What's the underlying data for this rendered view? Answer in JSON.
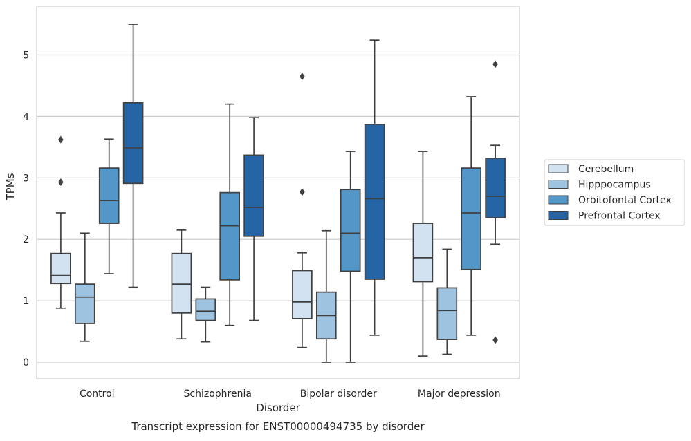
{
  "chart_data": {
    "type": "box",
    "title": "",
    "caption": "Transcript expression for ENST00000494735 by disorder",
    "xlabel": "Disorder",
    "ylabel": "TPMs",
    "categories": [
      "Control",
      "Schizophrenia",
      "Bipolar disorder",
      "Major depression"
    ],
    "ylim": [
      -0.27,
      5.8
    ],
    "yticks": [
      0,
      1,
      2,
      3,
      4,
      5
    ],
    "grid": "horizontal",
    "legend_position": "right",
    "series": [
      {
        "name": "Cerebellum",
        "color": "#d3e2f1",
        "boxes": [
          {
            "whisker_low": 0.88,
            "q1": 1.28,
            "median": 1.41,
            "q3": 1.77,
            "whisker_high": 2.43,
            "outliers": [
              2.93,
              3.62
            ]
          },
          {
            "whisker_low": 0.38,
            "q1": 0.8,
            "median": 1.27,
            "q3": 1.77,
            "whisker_high": 2.15,
            "outliers": []
          },
          {
            "whisker_low": 0.24,
            "q1": 0.71,
            "median": 0.98,
            "q3": 1.49,
            "whisker_high": 1.78,
            "outliers": [
              2.77,
              4.65
            ]
          },
          {
            "whisker_low": 0.1,
            "q1": 1.31,
            "median": 1.7,
            "q3": 2.26,
            "whisker_high": 3.43,
            "outliers": []
          }
        ]
      },
      {
        "name": "Hipppocampus",
        "color": "#9dc3e0",
        "boxes": [
          {
            "whisker_low": 0.34,
            "q1": 0.63,
            "median": 1.06,
            "q3": 1.27,
            "whisker_high": 2.1,
            "outliers": []
          },
          {
            "whisker_low": 0.33,
            "q1": 0.68,
            "median": 0.83,
            "q3": 1.03,
            "whisker_high": 1.22,
            "outliers": []
          },
          {
            "whisker_low": 0.0,
            "q1": 0.38,
            "median": 0.76,
            "q3": 1.14,
            "whisker_high": 2.14,
            "outliers": []
          },
          {
            "whisker_low": 0.13,
            "q1": 0.37,
            "median": 0.84,
            "q3": 1.21,
            "whisker_high": 1.84,
            "outliers": []
          }
        ]
      },
      {
        "name": "Orbitofontal Cortex",
        "color": "#5396c8",
        "boxes": [
          {
            "whisker_low": 1.44,
            "q1": 2.26,
            "median": 2.63,
            "q3": 3.16,
            "whisker_high": 3.63,
            "outliers": []
          },
          {
            "whisker_low": 0.6,
            "q1": 1.34,
            "median": 2.22,
            "q3": 2.76,
            "whisker_high": 4.2,
            "outliers": []
          },
          {
            "whisker_low": 0.0,
            "q1": 1.48,
            "median": 2.1,
            "q3": 2.81,
            "whisker_high": 3.43,
            "outliers": []
          },
          {
            "whisker_low": 0.44,
            "q1": 1.51,
            "median": 2.43,
            "q3": 3.16,
            "whisker_high": 4.32,
            "outliers": []
          }
        ]
      },
      {
        "name": "Prefrontal Cortex",
        "color": "#2565a5",
        "boxes": [
          {
            "whisker_low": 1.22,
            "q1": 2.91,
            "median": 3.49,
            "q3": 4.22,
            "whisker_high": 5.5,
            "outliers": []
          },
          {
            "whisker_low": 0.68,
            "q1": 2.05,
            "median": 2.52,
            "q3": 3.37,
            "whisker_high": 3.98,
            "outliers": []
          },
          {
            "whisker_low": 0.44,
            "q1": 1.35,
            "median": 2.66,
            "q3": 3.87,
            "whisker_high": 5.24,
            "outliers": []
          },
          {
            "whisker_low": 1.92,
            "q1": 2.35,
            "median": 2.7,
            "q3": 3.32,
            "whisker_high": 3.53,
            "outliers": [
              0.36,
              4.85
            ]
          }
        ]
      }
    ]
  }
}
